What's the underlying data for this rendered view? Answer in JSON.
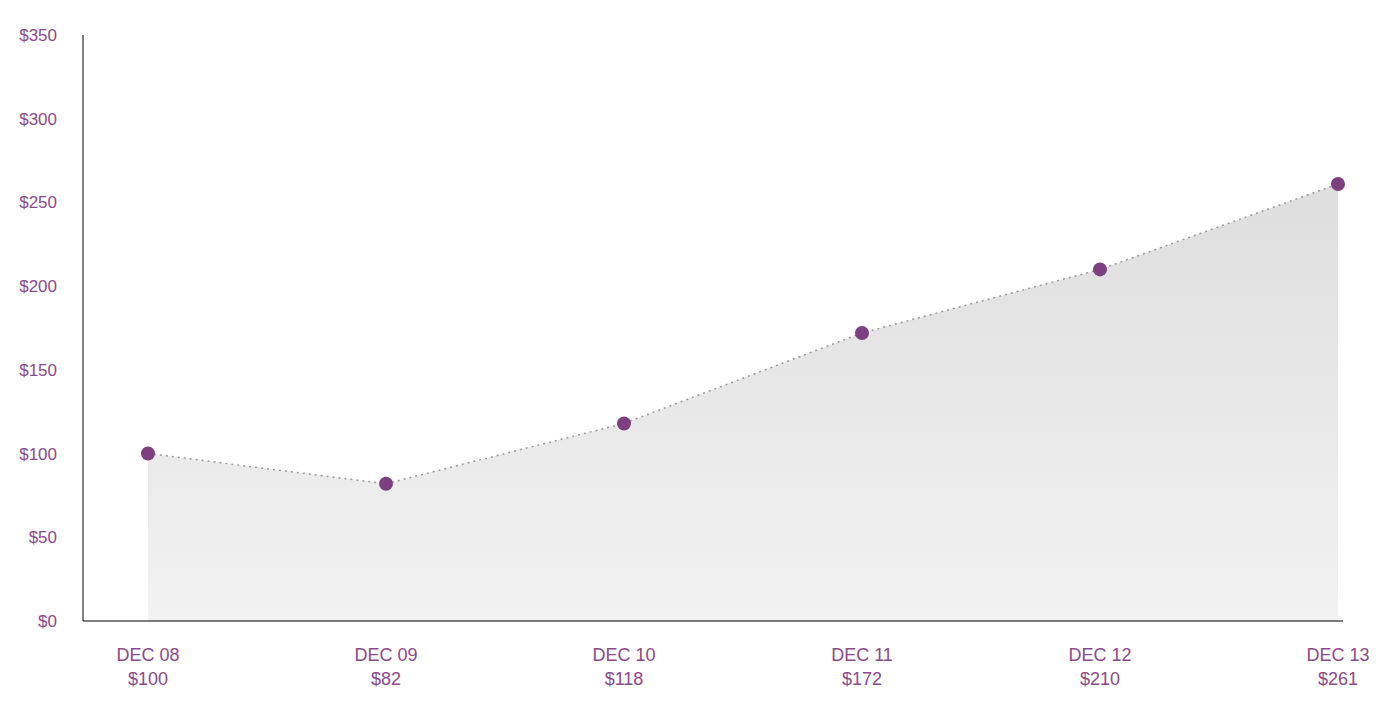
{
  "chart_data": {
    "type": "area",
    "categories": [
      "DEC 08",
      "DEC 09",
      "DEC 10",
      "DEC 11",
      "DEC 12",
      "DEC 13"
    ],
    "values": [
      100,
      82,
      118,
      172,
      210,
      261
    ],
    "value_labels": [
      "$100",
      "$82",
      "$118",
      "$172",
      "$210",
      "$261"
    ],
    "data_labels": true,
    "color": "#7e3f81",
    "marker": "circle",
    "line_style": "dotted",
    "ylim": [
      0,
      350
    ],
    "yticks": [
      {
        "value": 0,
        "label": "$0"
      },
      {
        "value": 50,
        "label": "$50"
      },
      {
        "value": 100,
        "label": "$100"
      },
      {
        "value": 150,
        "label": "$150"
      },
      {
        "value": 200,
        "label": "$200"
      },
      {
        "value": 250,
        "label": "$250"
      },
      {
        "value": 300,
        "label": "$300"
      },
      {
        "value": 350,
        "label": "$350"
      }
    ],
    "grid": false
  }
}
